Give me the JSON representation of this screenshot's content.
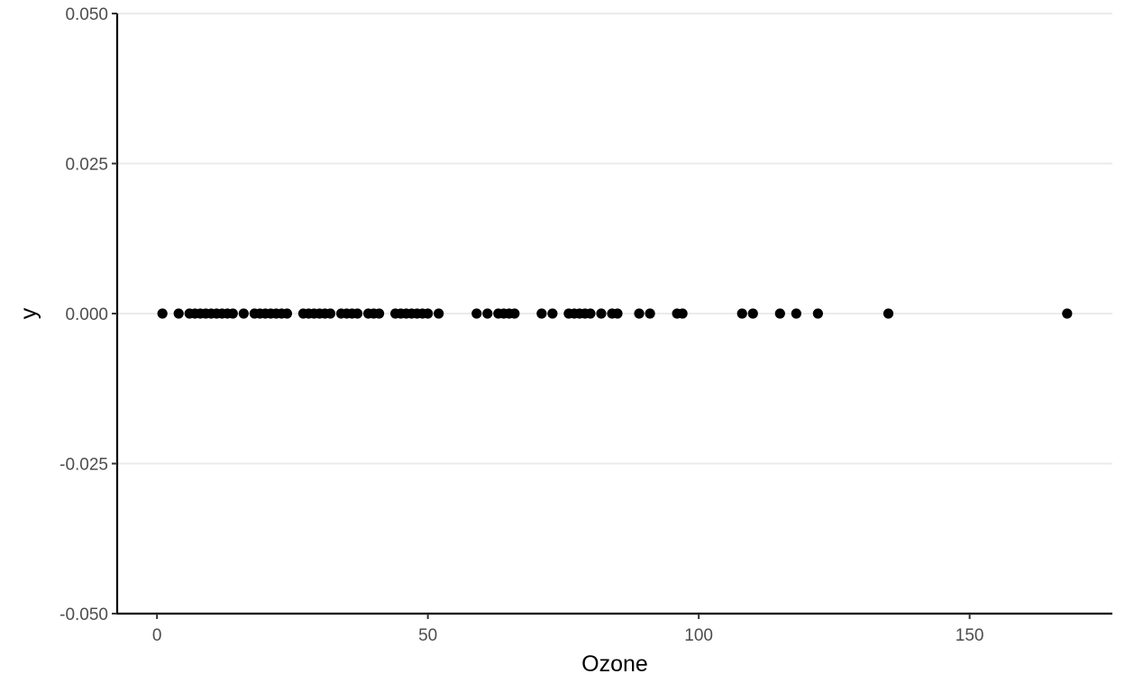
{
  "chart_data": {
    "type": "scatter",
    "title": "",
    "xlabel": "Ozone",
    "ylabel": "y",
    "xlim": [
      -7.35,
      176.35
    ],
    "ylim": [
      -0.05,
      0.05
    ],
    "x_ticks": [
      0,
      50,
      100,
      150
    ],
    "x_tick_labels": [
      "0",
      "50",
      "100",
      "150"
    ],
    "y_ticks": [
      -0.05,
      -0.025,
      0,
      0.025,
      0.05
    ],
    "y_tick_labels": [
      "-0.050",
      "-0.025",
      "0.000",
      "0.025",
      "0.050"
    ],
    "grid": "horizontal major",
    "legend": "none",
    "point_color": "#000000",
    "points": [
      {
        "x": 1,
        "y": 0
      },
      {
        "x": 4,
        "y": 0
      },
      {
        "x": 6,
        "y": 0
      },
      {
        "x": 7,
        "y": 0
      },
      {
        "x": 8,
        "y": 0
      },
      {
        "x": 9,
        "y": 0
      },
      {
        "x": 10,
        "y": 0
      },
      {
        "x": 11,
        "y": 0
      },
      {
        "x": 12,
        "y": 0
      },
      {
        "x": 13,
        "y": 0
      },
      {
        "x": 14,
        "y": 0
      },
      {
        "x": 16,
        "y": 0
      },
      {
        "x": 18,
        "y": 0
      },
      {
        "x": 19,
        "y": 0
      },
      {
        "x": 20,
        "y": 0
      },
      {
        "x": 21,
        "y": 0
      },
      {
        "x": 22,
        "y": 0
      },
      {
        "x": 23,
        "y": 0
      },
      {
        "x": 24,
        "y": 0
      },
      {
        "x": 27,
        "y": 0
      },
      {
        "x": 28,
        "y": 0
      },
      {
        "x": 29,
        "y": 0
      },
      {
        "x": 30,
        "y": 0
      },
      {
        "x": 31,
        "y": 0
      },
      {
        "x": 32,
        "y": 0
      },
      {
        "x": 34,
        "y": 0
      },
      {
        "x": 35,
        "y": 0
      },
      {
        "x": 36,
        "y": 0
      },
      {
        "x": 37,
        "y": 0
      },
      {
        "x": 39,
        "y": 0
      },
      {
        "x": 40,
        "y": 0
      },
      {
        "x": 41,
        "y": 0
      },
      {
        "x": 44,
        "y": 0
      },
      {
        "x": 45,
        "y": 0
      },
      {
        "x": 46,
        "y": 0
      },
      {
        "x": 47,
        "y": 0
      },
      {
        "x": 48,
        "y": 0
      },
      {
        "x": 49,
        "y": 0
      },
      {
        "x": 50,
        "y": 0
      },
      {
        "x": 52,
        "y": 0
      },
      {
        "x": 59,
        "y": 0
      },
      {
        "x": 61,
        "y": 0
      },
      {
        "x": 63,
        "y": 0
      },
      {
        "x": 64,
        "y": 0
      },
      {
        "x": 65,
        "y": 0
      },
      {
        "x": 66,
        "y": 0
      },
      {
        "x": 71,
        "y": 0
      },
      {
        "x": 73,
        "y": 0
      },
      {
        "x": 76,
        "y": 0
      },
      {
        "x": 77,
        "y": 0
      },
      {
        "x": 78,
        "y": 0
      },
      {
        "x": 79,
        "y": 0
      },
      {
        "x": 80,
        "y": 0
      },
      {
        "x": 82,
        "y": 0
      },
      {
        "x": 84,
        "y": 0
      },
      {
        "x": 85,
        "y": 0
      },
      {
        "x": 89,
        "y": 0
      },
      {
        "x": 91,
        "y": 0
      },
      {
        "x": 96,
        "y": 0
      },
      {
        "x": 97,
        "y": 0
      },
      {
        "x": 108,
        "y": 0
      },
      {
        "x": 110,
        "y": 0
      },
      {
        "x": 115,
        "y": 0
      },
      {
        "x": 118,
        "y": 0
      },
      {
        "x": 122,
        "y": 0
      },
      {
        "x": 135,
        "y": 0
      },
      {
        "x": 168,
        "y": 0
      }
    ]
  }
}
